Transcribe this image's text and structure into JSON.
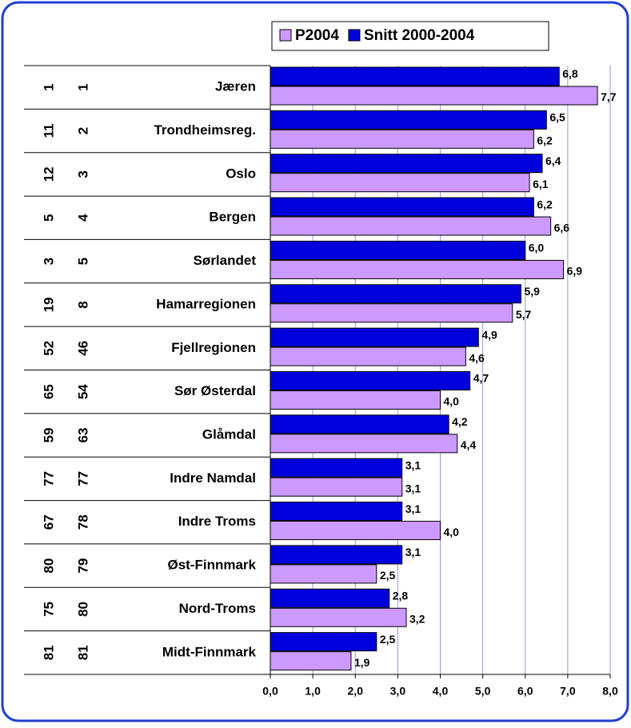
{
  "chart_data": {
    "type": "bar",
    "orientation": "horizontal",
    "categories": [
      "Jæren",
      "Trondheimsreg.",
      "Oslo",
      "Bergen",
      "Sørlandet",
      "Hamarregionen",
      "Fjellregionen",
      "Sør Østerdal",
      "Glåmdal",
      "Indre Namdal",
      "Indre Troms",
      "Øst-Finnmark",
      "Nord-Troms",
      "Midt-Finnmark"
    ],
    "rank_columns": [
      [
        1,
        11,
        12,
        5,
        3,
        19,
        52,
        65,
        59,
        77,
        67,
        80,
        75,
        81
      ],
      [
        1,
        2,
        3,
        4,
        5,
        8,
        46,
        54,
        63,
        77,
        78,
        79,
        80,
        81
      ]
    ],
    "series": [
      {
        "name": "P2004",
        "color": "#cc99ff",
        "values": [
          7.7,
          6.2,
          6.1,
          6.6,
          6.9,
          5.7,
          4.6,
          4.0,
          4.4,
          3.1,
          4.0,
          2.5,
          3.2,
          1.9
        ],
        "value_labels": [
          "7,7",
          "6,2",
          "6,1",
          "6,6",
          "6,9",
          "5,7",
          "4,6",
          "4,0",
          "4,4",
          "3,1",
          "4,0",
          "2,5",
          "3,2",
          "1,9"
        ]
      },
      {
        "name": "Snitt 2000-2004",
        "color": "#0000dd",
        "values": [
          6.8,
          6.5,
          6.4,
          6.2,
          6.0,
          5.9,
          4.9,
          4.7,
          4.2,
          3.1,
          3.1,
          3.1,
          2.8,
          2.5
        ],
        "value_labels": [
          "6,8",
          "6,5",
          "6,4",
          "6,2",
          "6,0",
          "5,9",
          "4,9",
          "4,7",
          "4,2",
          "3,1",
          "3,1",
          "3,1",
          "2,8",
          "2,5"
        ]
      }
    ],
    "xlim": [
      0,
      8
    ],
    "xticks": [
      {
        "value": 0,
        "label": "0,0"
      },
      {
        "value": 1,
        "label": "1,0"
      },
      {
        "value": 2,
        "label": "2,0"
      },
      {
        "value": 3,
        "label": "3,0"
      },
      {
        "value": 4,
        "label": "4,0"
      },
      {
        "value": 5,
        "label": "5,0"
      },
      {
        "value": 6,
        "label": "6,0"
      },
      {
        "value": 7,
        "label": "7,0"
      },
      {
        "value": 8,
        "label": "8,0"
      }
    ],
    "grid": true,
    "legend": "top"
  }
}
